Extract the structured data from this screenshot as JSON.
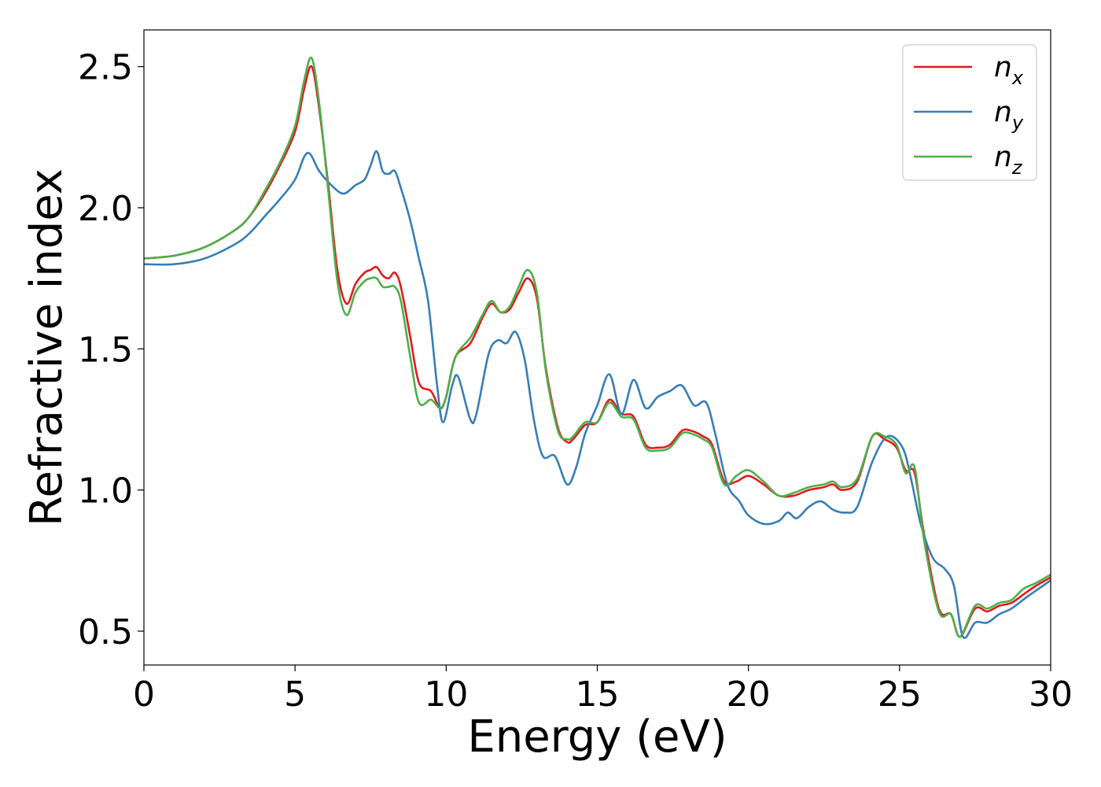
{
  "chart_data": {
    "type": "line",
    "title": "",
    "xlabel": "Energy (eV)",
    "ylabel": "Refractive index",
    "xlim": [
      0,
      30
    ],
    "ylim": [
      0.38,
      2.63
    ],
    "xticks": [
      0,
      5,
      10,
      15,
      20,
      25,
      30
    ],
    "xtick_labels": [
      "0",
      "5",
      "10",
      "15",
      "20",
      "25",
      "30"
    ],
    "yticks": [
      0.5,
      1.0,
      1.5,
      2.0,
      2.5
    ],
    "ytick_labels": [
      "0.5",
      "1.0",
      "1.5",
      "2.0",
      "2.5"
    ],
    "grid": false,
    "legend_position": "top-right",
    "series": [
      {
        "name": "n",
        "subscript": "x",
        "color": "#e41a1c",
        "points": [
          [
            0,
            1.82
          ],
          [
            1,
            1.83
          ],
          [
            2,
            1.86
          ],
          [
            3,
            1.92
          ],
          [
            3.5,
            1.97
          ],
          [
            4,
            2.05
          ],
          [
            4.5,
            2.15
          ],
          [
            5,
            2.27
          ],
          [
            5.3,
            2.42
          ],
          [
            5.55,
            2.5
          ],
          [
            5.8,
            2.35
          ],
          [
            6.1,
            2.08
          ],
          [
            6.4,
            1.78
          ],
          [
            6.7,
            1.66
          ],
          [
            7,
            1.73
          ],
          [
            7.3,
            1.77
          ],
          [
            7.5,
            1.78
          ],
          [
            7.7,
            1.79
          ],
          [
            7.9,
            1.76
          ],
          [
            8.1,
            1.75
          ],
          [
            8.3,
            1.77
          ],
          [
            8.5,
            1.72
          ],
          [
            8.8,
            1.55
          ],
          [
            9.1,
            1.38
          ],
          [
            9.5,
            1.35
          ],
          [
            9.8,
            1.29
          ],
          [
            10,
            1.33
          ],
          [
            10.3,
            1.47
          ],
          [
            10.8,
            1.52
          ],
          [
            11.2,
            1.61
          ],
          [
            11.5,
            1.66
          ],
          [
            11.8,
            1.63
          ],
          [
            12.1,
            1.64
          ],
          [
            12.4,
            1.7
          ],
          [
            12.7,
            1.75
          ],
          [
            13,
            1.68
          ],
          [
            13.3,
            1.43
          ],
          [
            13.7,
            1.22
          ],
          [
            14,
            1.17
          ],
          [
            14.2,
            1.18
          ],
          [
            14.6,
            1.23
          ],
          [
            15,
            1.24
          ],
          [
            15.4,
            1.32
          ],
          [
            15.8,
            1.27
          ],
          [
            16.2,
            1.26
          ],
          [
            16.6,
            1.16
          ],
          [
            17,
            1.15
          ],
          [
            17.4,
            1.16
          ],
          [
            17.8,
            1.21
          ],
          [
            18.1,
            1.21
          ],
          [
            18.5,
            1.19
          ],
          [
            18.8,
            1.16
          ],
          [
            19.2,
            1.03
          ],
          [
            19.6,
            1.03
          ],
          [
            20,
            1.05
          ],
          [
            20.5,
            1.02
          ],
          [
            21,
            0.98
          ],
          [
            21.5,
            0.98
          ],
          [
            22,
            1.0
          ],
          [
            22.5,
            1.01
          ],
          [
            22.8,
            1.02
          ],
          [
            23.1,
            1.0
          ],
          [
            23.6,
            1.03
          ],
          [
            24.1,
            1.19
          ],
          [
            24.5,
            1.18
          ],
          [
            24.9,
            1.15
          ],
          [
            25.2,
            1.07
          ],
          [
            25.5,
            1.06
          ],
          [
            25.8,
            0.85
          ],
          [
            26.3,
            0.58
          ],
          [
            26.7,
            0.56
          ],
          [
            27,
            0.48
          ],
          [
            27.5,
            0.58
          ],
          [
            27.9,
            0.57
          ],
          [
            28.3,
            0.59
          ],
          [
            28.7,
            0.6
          ],
          [
            29.1,
            0.63
          ],
          [
            29.5,
            0.66
          ],
          [
            30,
            0.69
          ]
        ]
      },
      {
        "name": "n",
        "subscript": "y",
        "color": "#377eb8",
        "points": [
          [
            0,
            1.8
          ],
          [
            1,
            1.8
          ],
          [
            2,
            1.82
          ],
          [
            3,
            1.87
          ],
          [
            3.5,
            1.91
          ],
          [
            4,
            1.97
          ],
          [
            4.5,
            2.03
          ],
          [
            5,
            2.1
          ],
          [
            5.3,
            2.18
          ],
          [
            5.5,
            2.19
          ],
          [
            5.8,
            2.13
          ],
          [
            6.2,
            2.08
          ],
          [
            6.6,
            2.05
          ],
          [
            7,
            2.08
          ],
          [
            7.3,
            2.1
          ],
          [
            7.5,
            2.15
          ],
          [
            7.7,
            2.2
          ],
          [
            7.9,
            2.13
          ],
          [
            8.1,
            2.12
          ],
          [
            8.3,
            2.13
          ],
          [
            8.5,
            2.07
          ],
          [
            8.8,
            1.96
          ],
          [
            9.1,
            1.82
          ],
          [
            9.4,
            1.67
          ],
          [
            9.7,
            1.37
          ],
          [
            9.9,
            1.24
          ],
          [
            10.2,
            1.37
          ],
          [
            10.4,
            1.4
          ],
          [
            10.8,
            1.25
          ],
          [
            11,
            1.27
          ],
          [
            11.4,
            1.48
          ],
          [
            11.7,
            1.53
          ],
          [
            12,
            1.52
          ],
          [
            12.3,
            1.56
          ],
          [
            12.6,
            1.46
          ],
          [
            12.9,
            1.25
          ],
          [
            13.2,
            1.12
          ],
          [
            13.6,
            1.12
          ],
          [
            14,
            1.02
          ],
          [
            14.3,
            1.08
          ],
          [
            14.6,
            1.2
          ],
          [
            15,
            1.3
          ],
          [
            15.4,
            1.41
          ],
          [
            15.8,
            1.27
          ],
          [
            16.2,
            1.39
          ],
          [
            16.6,
            1.29
          ],
          [
            17,
            1.33
          ],
          [
            17.4,
            1.35
          ],
          [
            17.8,
            1.37
          ],
          [
            18.2,
            1.3
          ],
          [
            18.6,
            1.31
          ],
          [
            18.9,
            1.2
          ],
          [
            19.3,
            1.02
          ],
          [
            19.7,
            0.96
          ],
          [
            20,
            0.91
          ],
          [
            20.5,
            0.88
          ],
          [
            21,
            0.89
          ],
          [
            21.3,
            0.92
          ],
          [
            21.6,
            0.9
          ],
          [
            22,
            0.94
          ],
          [
            22.4,
            0.96
          ],
          [
            22.8,
            0.93
          ],
          [
            23.2,
            0.92
          ],
          [
            23.6,
            0.94
          ],
          [
            24.1,
            1.1
          ],
          [
            24.6,
            1.19
          ],
          [
            25.1,
            1.15
          ],
          [
            25.4,
            1.03
          ],
          [
            25.7,
            0.88
          ],
          [
            26.1,
            0.76
          ],
          [
            26.5,
            0.72
          ],
          [
            26.8,
            0.66
          ],
          [
            27.1,
            0.48
          ],
          [
            27.5,
            0.53
          ],
          [
            27.9,
            0.53
          ],
          [
            28.3,
            0.56
          ],
          [
            28.7,
            0.58
          ],
          [
            29.2,
            0.62
          ],
          [
            29.6,
            0.65
          ],
          [
            30,
            0.68
          ]
        ]
      },
      {
        "name": "n",
        "subscript": "z",
        "color": "#4daf4a",
        "points": [
          [
            0,
            1.82
          ],
          [
            1,
            1.83
          ],
          [
            2,
            1.86
          ],
          [
            3,
            1.92
          ],
          [
            3.5,
            1.97
          ],
          [
            4,
            2.06
          ],
          [
            4.5,
            2.16
          ],
          [
            5,
            2.29
          ],
          [
            5.3,
            2.45
          ],
          [
            5.55,
            2.53
          ],
          [
            5.8,
            2.37
          ],
          [
            6.1,
            2.06
          ],
          [
            6.4,
            1.74
          ],
          [
            6.7,
            1.62
          ],
          [
            7,
            1.7
          ],
          [
            7.3,
            1.74
          ],
          [
            7.5,
            1.75
          ],
          [
            7.7,
            1.75
          ],
          [
            7.9,
            1.72
          ],
          [
            8.1,
            1.72
          ],
          [
            8.3,
            1.72
          ],
          [
            8.5,
            1.67
          ],
          [
            8.8,
            1.48
          ],
          [
            9.1,
            1.31
          ],
          [
            9.5,
            1.32
          ],
          [
            9.8,
            1.29
          ],
          [
            10,
            1.33
          ],
          [
            10.3,
            1.47
          ],
          [
            10.8,
            1.54
          ],
          [
            11.2,
            1.62
          ],
          [
            11.5,
            1.67
          ],
          [
            11.8,
            1.63
          ],
          [
            12.1,
            1.65
          ],
          [
            12.4,
            1.72
          ],
          [
            12.7,
            1.78
          ],
          [
            13,
            1.7
          ],
          [
            13.3,
            1.42
          ],
          [
            13.7,
            1.21
          ],
          [
            14,
            1.18
          ],
          [
            14.2,
            1.19
          ],
          [
            14.6,
            1.24
          ],
          [
            15,
            1.24
          ],
          [
            15.4,
            1.31
          ],
          [
            15.8,
            1.26
          ],
          [
            16.2,
            1.25
          ],
          [
            16.6,
            1.15
          ],
          [
            17,
            1.14
          ],
          [
            17.4,
            1.15
          ],
          [
            17.8,
            1.2
          ],
          [
            18.1,
            1.2
          ],
          [
            18.5,
            1.18
          ],
          [
            18.8,
            1.15
          ],
          [
            19.2,
            1.02
          ],
          [
            19.6,
            1.05
          ],
          [
            20,
            1.07
          ],
          [
            20.5,
            1.03
          ],
          [
            21,
            0.98
          ],
          [
            21.5,
            0.99
          ],
          [
            22,
            1.01
          ],
          [
            22.5,
            1.02
          ],
          [
            22.8,
            1.03
          ],
          [
            23.1,
            1.01
          ],
          [
            23.6,
            1.04
          ],
          [
            24.1,
            1.19
          ],
          [
            24.5,
            1.19
          ],
          [
            24.9,
            1.16
          ],
          [
            25.2,
            1.06
          ],
          [
            25.5,
            1.08
          ],
          [
            25.8,
            0.83
          ],
          [
            26.3,
            0.57
          ],
          [
            26.7,
            0.56
          ],
          [
            27,
            0.48
          ],
          [
            27.5,
            0.59
          ],
          [
            27.9,
            0.58
          ],
          [
            28.3,
            0.6
          ],
          [
            28.7,
            0.61
          ],
          [
            29.1,
            0.65
          ],
          [
            29.5,
            0.67
          ],
          [
            30,
            0.7
          ]
        ]
      }
    ]
  }
}
